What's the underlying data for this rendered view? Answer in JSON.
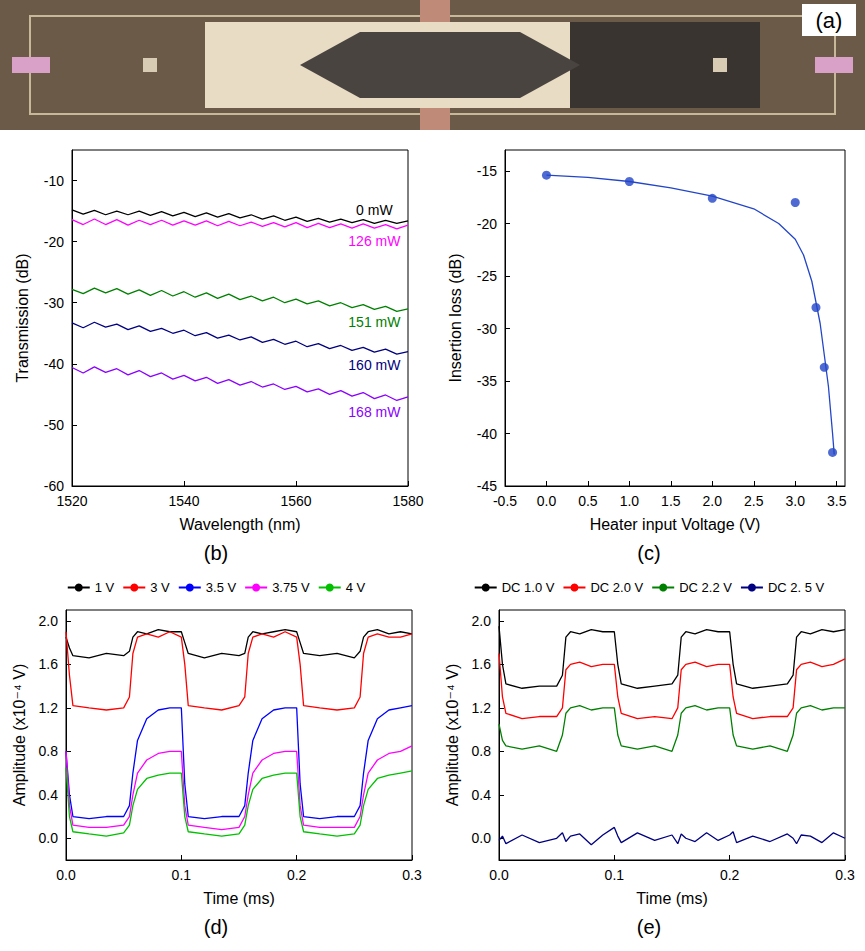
{
  "photo": {
    "label": "(a)"
  },
  "chart_data": [
    {
      "type": "line",
      "title": "(b)",
      "x_label": "Wavelength (nm)",
      "y_label": "Transmission (dB)",
      "x": [
        1520,
        1522,
        1524,
        1526,
        1528,
        1530,
        1532,
        1534,
        1536,
        1538,
        1540,
        1542,
        1544,
        1546,
        1548,
        1550,
        1552,
        1554,
        1556,
        1558,
        1560,
        1562,
        1564,
        1566,
        1568,
        1570,
        1572,
        1574,
        1576,
        1578,
        1580
      ],
      "xlim": [
        1520,
        1580
      ],
      "xticks": [
        1520,
        1540,
        1560,
        1580
      ],
      "ylim": [
        -60,
        -5
      ],
      "yticks": [
        -60,
        -50,
        -40,
        -30,
        -20,
        -10
      ],
      "grid": false,
      "series": [
        {
          "name": "0 mW",
          "color": "#000000",
          "values": [
            -14.8,
            -15.5,
            -14.9,
            -15.6,
            -15.0,
            -15.6,
            -15.0,
            -15.7,
            -15.1,
            -15.8,
            -15.2,
            -15.9,
            -15.3,
            -16.0,
            -15.4,
            -16.1,
            -15.6,
            -16.3,
            -15.8,
            -16.5,
            -16.0,
            -16.7,
            -16.2,
            -16.8,
            -16.3,
            -16.9,
            -16.4,
            -17.0,
            -16.5,
            -17.0,
            -16.6
          ]
        },
        {
          "name": "126 mW",
          "color": "#ff00ff",
          "values": [
            -16.4,
            -17.2,
            -16.3,
            -17.2,
            -16.4,
            -17.3,
            -16.5,
            -17.2,
            -16.5,
            -17.3,
            -16.6,
            -17.3,
            -16.6,
            -17.4,
            -16.7,
            -17.4,
            -16.8,
            -17.5,
            -16.9,
            -17.6,
            -16.9,
            -17.7,
            -17.0,
            -17.7,
            -17.1,
            -17.8,
            -17.1,
            -17.8,
            -17.2,
            -17.9,
            -17.3
          ]
        },
        {
          "name": "151 mW",
          "color": "#008000",
          "values": [
            -27.8,
            -28.5,
            -27.6,
            -28.4,
            -27.7,
            -28.6,
            -27.9,
            -28.8,
            -28.0,
            -28.9,
            -28.2,
            -29.1,
            -28.4,
            -29.3,
            -28.6,
            -29.5,
            -28.9,
            -29.7,
            -29.1,
            -30.0,
            -29.4,
            -30.2,
            -29.7,
            -30.5,
            -30.0,
            -30.8,
            -30.3,
            -31.1,
            -30.6,
            -31.4,
            -31.0
          ]
        },
        {
          "name": "160 mW",
          "color": "#000080",
          "values": [
            -33.3,
            -34.1,
            -33.2,
            -34.0,
            -33.5,
            -34.4,
            -33.8,
            -34.7,
            -34.2,
            -35.0,
            -34.5,
            -35.4,
            -34.9,
            -35.8,
            -35.3,
            -36.1,
            -35.6,
            -36.5,
            -36.0,
            -36.8,
            -36.3,
            -37.2,
            -36.7,
            -37.5,
            -37.0,
            -37.8,
            -37.3,
            -38.1,
            -37.6,
            -38.4,
            -38.0
          ]
        },
        {
          "name": "168 mW",
          "color": "#8b00ff",
          "values": [
            -40.6,
            -41.5,
            -40.5,
            -41.4,
            -40.8,
            -41.8,
            -41.1,
            -42.1,
            -41.5,
            -42.5,
            -41.9,
            -42.8,
            -42.2,
            -43.2,
            -42.6,
            -43.5,
            -42.9,
            -43.8,
            -43.3,
            -44.2,
            -43.7,
            -44.6,
            -44.1,
            -45.0,
            -44.4,
            -45.3,
            -44.7,
            -45.7,
            -45.1,
            -46.0,
            -45.4
          ]
        }
      ]
    },
    {
      "type": "line",
      "title": "(c)",
      "x_label": "Heater input Voltage (V)",
      "y_label": "Insertion loss (dB)",
      "xlim": [
        -0.5,
        3.6
      ],
      "xticks": [
        -0.5,
        {
          "value": 0,
          "label": "0.0"
        },
        0.5,
        {
          "value": 1,
          "label": "1.0"
        },
        1.5,
        {
          "value": 2,
          "label": "2.0"
        },
        2.5,
        {
          "value": 3,
          "label": "3.0"
        },
        3.5
      ],
      "ylim": [
        -45,
        -13
      ],
      "yticks": [
        -45,
        -40,
        -35,
        -30,
        -25,
        -20,
        -15
      ],
      "grid": false,
      "series": [
        {
          "type": "scatter",
          "marker": "circle",
          "color": "#2346c8",
          "x": [
            0,
            1,
            2,
            3,
            3.25,
            3.35,
            3.45
          ],
          "values": [
            -15.4,
            -16.0,
            -17.6,
            -18.0,
            -28.0,
            -33.7,
            -41.8
          ]
        },
        {
          "type": "line",
          "line_style": "solid",
          "color": "#2346c8",
          "x": [
            0,
            0.5,
            1,
            1.5,
            2,
            2.5,
            2.8,
            3,
            3.1,
            3.2,
            3.3,
            3.4,
            3.45,
            3.47
          ],
          "values": [
            -15.4,
            -15.6,
            -16.0,
            -16.6,
            -17.4,
            -18.6,
            -20.0,
            -21.5,
            -23.0,
            -25.5,
            -29.5,
            -35.5,
            -40.0,
            -42.0
          ]
        }
      ]
    },
    {
      "type": "line",
      "title": "(d)",
      "x_label": "Time (ms)",
      "y_label": "Amplitude (x10⁻⁴ V)",
      "legend": "top",
      "x": [
        0,
        0.003,
        0.006,
        0.02,
        0.035,
        0.05,
        0.055,
        0.058,
        0.062,
        0.07,
        0.08,
        0.09,
        0.1,
        0.103,
        0.106,
        0.12,
        0.135,
        0.15,
        0.155,
        0.158,
        0.162,
        0.17,
        0.18,
        0.19,
        0.2,
        0.203,
        0.206,
        0.22,
        0.235,
        0.25,
        0.255,
        0.258,
        0.262,
        0.27,
        0.28,
        0.29,
        0.3
      ],
      "xlim": [
        0,
        0.3
      ],
      "xticks": [
        {
          "value": 0,
          "label": "0.0"
        },
        0.1,
        0.2,
        0.3
      ],
      "ylim": [
        -0.2,
        2.1
      ],
      "yticks": [
        {
          "value": 0,
          "label": "0.0"
        },
        0.4,
        0.8,
        1.2,
        1.6,
        {
          "value": 2,
          "label": "2.0"
        }
      ],
      "grid": false,
      "series": [
        {
          "name": "1 V",
          "color": "#000000",
          "values": [
            1.85,
            1.75,
            1.68,
            1.66,
            1.7,
            1.68,
            1.72,
            1.85,
            1.9,
            1.88,
            1.92,
            1.9,
            1.9,
            1.8,
            1.7,
            1.66,
            1.7,
            1.68,
            1.7,
            1.85,
            1.9,
            1.88,
            1.9,
            1.92,
            1.9,
            1.8,
            1.7,
            1.68,
            1.7,
            1.66,
            1.72,
            1.85,
            1.9,
            1.92,
            1.88,
            1.9,
            1.88
          ]
        },
        {
          "name": "3 V",
          "color": "#ff0000",
          "values": [
            1.9,
            1.5,
            1.22,
            1.2,
            1.18,
            1.2,
            1.3,
            1.7,
            1.85,
            1.88,
            1.85,
            1.9,
            1.85,
            1.6,
            1.22,
            1.2,
            1.18,
            1.22,
            1.3,
            1.7,
            1.85,
            1.88,
            1.85,
            1.9,
            1.85,
            1.6,
            1.22,
            1.2,
            1.18,
            1.2,
            1.3,
            1.7,
            1.85,
            1.88,
            1.85,
            1.85,
            1.88
          ]
        },
        {
          "name": "3.5 V",
          "color": "#0000ff",
          "values": [
            0.8,
            0.4,
            0.2,
            0.18,
            0.2,
            0.2,
            0.3,
            0.6,
            0.9,
            1.1,
            1.18,
            1.2,
            1.2,
            0.5,
            0.2,
            0.18,
            0.2,
            0.2,
            0.3,
            0.6,
            0.9,
            1.1,
            1.18,
            1.2,
            1.2,
            0.5,
            0.2,
            0.18,
            0.2,
            0.2,
            0.3,
            0.6,
            0.9,
            1.1,
            1.18,
            1.2,
            1.22
          ]
        },
        {
          "name": "3.75 V",
          "color": "#ff00ff",
          "values": [
            0.8,
            0.3,
            0.12,
            0.1,
            0.1,
            0.12,
            0.2,
            0.4,
            0.6,
            0.72,
            0.78,
            0.8,
            0.8,
            0.3,
            0.12,
            0.1,
            0.08,
            0.1,
            0.2,
            0.4,
            0.6,
            0.72,
            0.78,
            0.8,
            0.8,
            0.3,
            0.12,
            0.1,
            0.1,
            0.1,
            0.2,
            0.4,
            0.6,
            0.72,
            0.78,
            0.8,
            0.85
          ]
        },
        {
          "name": "4 V",
          "color": "#00c000",
          "values": [
            0.65,
            0.2,
            0.06,
            0.04,
            0.02,
            0.05,
            0.12,
            0.3,
            0.45,
            0.55,
            0.58,
            0.6,
            0.6,
            0.2,
            0.06,
            0.04,
            0.02,
            0.04,
            0.12,
            0.3,
            0.45,
            0.55,
            0.58,
            0.6,
            0.6,
            0.2,
            0.06,
            0.04,
            0.02,
            0.04,
            0.12,
            0.3,
            0.45,
            0.55,
            0.58,
            0.6,
            0.62
          ]
        }
      ]
    },
    {
      "type": "line",
      "title": "(e)",
      "x_label": "Time (ms)",
      "y_label": "Amplitude (x10⁻⁴ V)",
      "legend": "top",
      "x": [
        0,
        0.003,
        0.006,
        0.02,
        0.035,
        0.05,
        0.055,
        0.058,
        0.062,
        0.07,
        0.08,
        0.09,
        0.1,
        0.103,
        0.106,
        0.12,
        0.135,
        0.15,
        0.155,
        0.158,
        0.162,
        0.17,
        0.18,
        0.19,
        0.2,
        0.203,
        0.206,
        0.22,
        0.235,
        0.25,
        0.255,
        0.258,
        0.262,
        0.27,
        0.28,
        0.29,
        0.3
      ],
      "xlim": [
        0,
        0.3
      ],
      "xticks": [
        {
          "value": 0,
          "label": "0.0"
        },
        0.1,
        0.2,
        0.3
      ],
      "ylim": [
        -0.2,
        2.1
      ],
      "yticks": [
        {
          "value": 0,
          "label": "0.0"
        },
        0.4,
        0.8,
        1.2,
        1.6,
        {
          "value": 2,
          "label": "2.0"
        }
      ],
      "grid": false,
      "series": [
        {
          "name": "DC 1.0 V",
          "color": "#000000",
          "values": [
            1.95,
            1.6,
            1.42,
            1.38,
            1.4,
            1.4,
            1.5,
            1.85,
            1.9,
            1.88,
            1.92,
            1.9,
            1.9,
            1.6,
            1.42,
            1.38,
            1.4,
            1.42,
            1.5,
            1.85,
            1.9,
            1.88,
            1.92,
            1.9,
            1.9,
            1.6,
            1.42,
            1.38,
            1.4,
            1.42,
            1.5,
            1.85,
            1.9,
            1.88,
            1.92,
            1.9,
            1.92
          ]
        },
        {
          "name": "DC 2.0 V",
          "color": "#ff0000",
          "values": [
            1.7,
            1.3,
            1.15,
            1.1,
            1.12,
            1.12,
            1.2,
            1.55,
            1.6,
            1.62,
            1.58,
            1.6,
            1.6,
            1.3,
            1.15,
            1.1,
            1.12,
            1.1,
            1.2,
            1.55,
            1.6,
            1.62,
            1.58,
            1.6,
            1.6,
            1.3,
            1.15,
            1.1,
            1.12,
            1.12,
            1.2,
            1.55,
            1.6,
            1.62,
            1.58,
            1.6,
            1.65
          ]
        },
        {
          "name": "DC 2.2 V",
          "color": "#008000",
          "values": [
            1.05,
            0.9,
            0.85,
            0.82,
            0.85,
            0.8,
            0.95,
            1.15,
            1.2,
            1.22,
            1.18,
            1.2,
            1.2,
            0.95,
            0.85,
            0.82,
            0.85,
            0.8,
            0.95,
            1.15,
            1.2,
            1.22,
            1.18,
            1.2,
            1.2,
            0.95,
            0.85,
            0.82,
            0.85,
            0.8,
            0.95,
            1.15,
            1.2,
            1.22,
            1.18,
            1.2,
            1.2
          ]
        },
        {
          "name": "DC 2. 5 V",
          "color": "#000080",
          "values": [
            -0.02,
            0.02,
            -0.05,
            0.03,
            -0.04,
            0.0,
            0.05,
            -0.03,
            0.02,
            0.04,
            -0.06,
            0.03,
            0.1,
            0.02,
            -0.04,
            0.05,
            -0.02,
            0.03,
            -0.05,
            0.04,
            0.0,
            -0.03,
            0.05,
            -0.02,
            0.03,
            0.06,
            -0.04,
            0.02,
            -0.03,
            0.04,
            0.0,
            -0.05,
            0.03,
            0.02,
            -0.04,
            0.05,
            0.0
          ]
        }
      ]
    }
  ]
}
